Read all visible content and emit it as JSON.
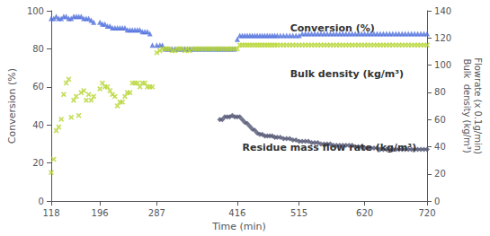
{
  "chart_data": {
    "type": "scatter",
    "xlabel": "Time (min)",
    "ylabel": "Conversion (%)",
    "y2label": [
      "Flowrate (x 0.1g/min)",
      "Bulk  density (kg/m³)"
    ],
    "annotations": [
      "Conversion (%)",
      "Bulk density (kg/m³)",
      "Residue mass flow rate (kg/m³)"
    ],
    "xlim": [
      118,
      720
    ],
    "xticks": [
      118,
      196,
      287,
      416,
      515,
      620,
      720
    ],
    "ylim": [
      0,
      100
    ],
    "yticks": [
      0,
      20,
      40,
      60,
      80,
      100
    ],
    "y2lim": [
      0,
      140
    ],
    "y2ticks": [
      0,
      20,
      40,
      60,
      80,
      100,
      120,
      140
    ],
    "grid": false,
    "series": [
      {
        "axis": "y",
        "marker": "triangle",
        "x": [
          118,
          122,
          126,
          130,
          134,
          138,
          142,
          146,
          150,
          154,
          158,
          162,
          166,
          170,
          174,
          178,
          182,
          186,
          196,
          200,
          204,
          208,
          212,
          216,
          220,
          224,
          228,
          232,
          236,
          240,
          244,
          248,
          252,
          256,
          260,
          264,
          268,
          272,
          276,
          280,
          287,
          292,
          296,
          300,
          304,
          308,
          312,
          316,
          320,
          324,
          328,
          332,
          336,
          340,
          344,
          348,
          352,
          356,
          360,
          364,
          368,
          372,
          376,
          380,
          384,
          388,
          392,
          396,
          400,
          404,
          408,
          412,
          416,
          420,
          424,
          428,
          432,
          436,
          440,
          444,
          448,
          452,
          456,
          460,
          464,
          468,
          472,
          476,
          480,
          485,
          490,
          495,
          500,
          505,
          510,
          515,
          520,
          525,
          530,
          535,
          540,
          545,
          550,
          555,
          560,
          565,
          570,
          575,
          580,
          585,
          590,
          595,
          600,
          605,
          610,
          615,
          620,
          625,
          630,
          635,
          640,
          645,
          650,
          655,
          660,
          665,
          670,
          675,
          680,
          685,
          690,
          695,
          700,
          705,
          710,
          715,
          720
        ],
        "values": [
          96,
          96,
          97,
          96,
          96,
          97,
          97,
          96,
          96,
          97,
          97,
          97,
          97,
          96,
          96,
          96,
          95,
          94,
          94,
          93,
          93,
          92,
          92,
          91,
          91,
          91,
          91,
          91,
          91,
          90,
          90,
          90,
          90,
          90,
          90,
          89,
          89,
          89,
          88,
          82,
          82,
          82,
          82,
          80,
          80,
          80,
          80,
          80,
          80,
          80,
          80,
          80,
          80,
          80,
          80,
          80,
          80,
          80,
          80,
          80,
          80,
          80,
          80,
          80,
          80,
          80,
          80,
          80,
          80,
          80,
          80,
          80,
          85,
          87,
          87,
          87,
          87,
          87,
          87,
          87,
          87,
          87,
          87,
          87,
          87,
          87,
          87,
          87,
          87,
          87,
          87,
          87,
          87,
          87,
          87,
          87,
          88,
          88,
          88,
          88,
          88,
          88,
          88,
          88,
          88,
          88,
          88,
          88,
          88,
          88,
          88,
          88,
          88,
          88,
          88,
          88,
          88,
          88,
          88,
          88,
          88,
          88,
          88,
          88,
          88,
          88,
          88,
          88,
          88,
          88,
          88,
          88,
          88,
          88,
          88,
          88,
          88
        ]
      },
      {
        "axis": "y",
        "marker": "x",
        "x": [
          118,
          122,
          126,
          130,
          134,
          138,
          142,
          146,
          150,
          154,
          158,
          162,
          166,
          170,
          174,
          178,
          182,
          186,
          196,
          200,
          204,
          208,
          212,
          216,
          220,
          224,
          228,
          232,
          236,
          240,
          244,
          248,
          252,
          256,
          260,
          264,
          268,
          272,
          276,
          280,
          287,
          292,
          296,
          300,
          304,
          308,
          312,
          316,
          320,
          324,
          328,
          332,
          336,
          340,
          344,
          348,
          352,
          356,
          360,
          364,
          368,
          372,
          376,
          380,
          384,
          388,
          392,
          396,
          400,
          404,
          408,
          412,
          416,
          420,
          424,
          428,
          432,
          436,
          440,
          444,
          448,
          452,
          456,
          460,
          464,
          468,
          472,
          476,
          480,
          485,
          490,
          495,
          500,
          505,
          510,
          515,
          520,
          525,
          530,
          535,
          540,
          545,
          550,
          555,
          560,
          565,
          570,
          575,
          580,
          585,
          590,
          595,
          600,
          605,
          610,
          615,
          620,
          625,
          630,
          635,
          640,
          645,
          650,
          655,
          660,
          665,
          670,
          675,
          680,
          685,
          690,
          695,
          700,
          705,
          710,
          715,
          720
        ],
        "values": [
          15,
          22,
          37,
          39,
          43,
          56,
          62,
          64,
          44,
          53,
          55,
          45,
          57,
          58,
          53,
          56,
          53,
          55,
          59,
          62,
          60,
          60,
          58,
          56,
          55,
          50,
          52,
          52,
          55,
          57,
          57,
          62,
          62,
          62,
          60,
          62,
          62,
          60,
          60,
          60,
          78,
          79,
          80,
          80,
          80,
          80,
          79,
          79,
          80,
          80,
          80,
          79,
          80,
          79,
          80,
          80,
          80,
          80,
          80,
          80,
          80,
          80,
          80,
          80,
          80,
          80,
          80,
          80,
          80,
          80,
          80,
          80,
          80,
          82,
          82,
          82,
          82,
          82,
          82,
          82,
          82,
          82,
          82,
          82,
          82,
          82,
          82,
          82,
          82,
          82,
          82,
          82,
          82,
          82,
          82,
          82,
          82,
          82,
          82,
          82,
          82,
          82,
          82,
          82,
          82,
          82,
          82,
          82,
          82,
          82,
          82,
          82,
          82,
          82,
          82,
          82,
          82,
          82,
          82,
          82,
          82,
          82,
          82,
          82,
          82,
          82,
          82,
          82,
          82,
          82,
          82,
          82,
          82,
          82,
          82,
          82,
          82
        ]
      },
      {
        "axis": "y2",
        "marker": "diamond",
        "x": [
          388,
          392,
          396,
          400,
          404,
          408,
          412,
          416,
          420,
          424,
          428,
          432,
          436,
          440,
          444,
          448,
          452,
          456,
          460,
          464,
          468,
          472,
          476,
          480,
          485,
          490,
          495,
          500,
          505,
          510,
          515,
          520,
          525,
          530,
          535,
          540,
          545,
          550,
          555,
          560,
          565,
          570,
          575,
          580,
          585,
          590,
          595,
          600,
          605,
          610,
          615,
          620,
          625,
          630,
          635,
          640,
          645,
          650,
          655,
          660,
          665,
          670,
          675,
          680,
          685,
          690,
          695,
          700,
          705,
          710,
          715,
          720
        ],
        "values": [
          60,
          60,
          62,
          62,
          62,
          63,
          62,
          62,
          62,
          60,
          58,
          57,
          55,
          53,
          52,
          50,
          49,
          49,
          48,
          48,
          48,
          48,
          47,
          47,
          47,
          46,
          46,
          46,
          45,
          45,
          44,
          44,
          44,
          44,
          43,
          43,
          43,
          42,
          42,
          42,
          42,
          41,
          41,
          41,
          41,
          41,
          41,
          41,
          40,
          40,
          40,
          39,
          39,
          39,
          39,
          39,
          38,
          38,
          38,
          38,
          38,
          38,
          38,
          38,
          38,
          38,
          38,
          38,
          38,
          38,
          38,
          38
        ]
      }
    ]
  }
}
